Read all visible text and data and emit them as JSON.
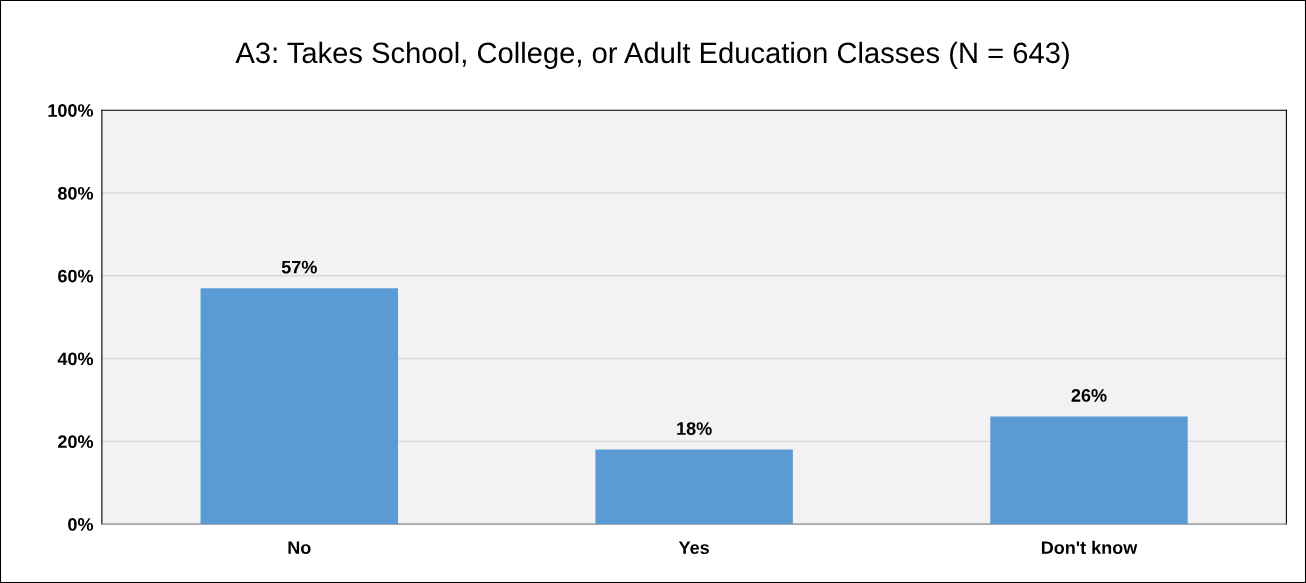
{
  "chart_data": {
    "type": "bar",
    "title": "A3: Takes School, College, or Adult Education Classes (N = 643)",
    "categories": [
      "No",
      "Yes",
      "Don't know"
    ],
    "values": [
      57,
      18,
      26
    ],
    "color": "#5b9bd5",
    "data_labels": true,
    "value_labels": [
      "57%",
      "18%",
      "26%"
    ],
    "ylim": [
      0,
      100
    ],
    "yticks": [
      {
        "value": 0,
        "label": "0%"
      },
      {
        "value": 20,
        "label": "20%"
      },
      {
        "value": 40,
        "label": "40%"
      },
      {
        "value": 60,
        "label": "60%"
      },
      {
        "value": 80,
        "label": "80%"
      },
      {
        "value": 100,
        "label": "100%"
      }
    ],
    "grid": "y",
    "legend": false
  }
}
